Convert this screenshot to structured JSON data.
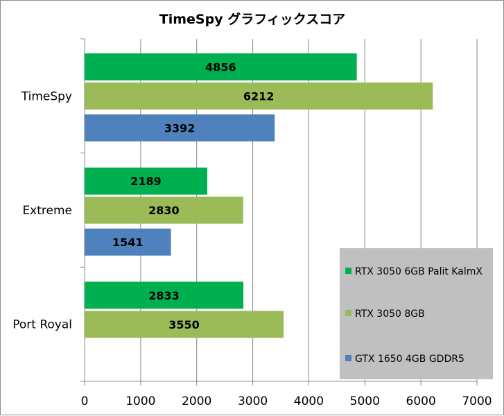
{
  "chart_data": {
    "type": "bar",
    "orientation": "horizontal",
    "title": "TimeSpy グラフィックスコア",
    "categories": [
      "TimeSpy",
      "Extreme",
      "Port Royal"
    ],
    "series": [
      {
        "name": "RTX 3050 6GB Palit KalmX",
        "color": "#00b050",
        "values": [
          4856,
          2189,
          2833
        ]
      },
      {
        "name": "RTX 3050 8GB",
        "color": "#9bbb59",
        "values": [
          6212,
          2830,
          3550
        ]
      },
      {
        "name": "GTX 1650 4GB GDDR5",
        "color": "#4f81bd",
        "values": [
          3392,
          1541,
          null
        ]
      }
    ],
    "xlim": [
      0,
      7000
    ],
    "xticks": [
      "0",
      "1000",
      "2000",
      "3000",
      "4000",
      "5000",
      "6000",
      "7000"
    ],
    "grid": true,
    "legend_position": "bottom-right"
  },
  "colors": {
    "gridline": "#888888",
    "legend_background": "#c0c0c0"
  }
}
